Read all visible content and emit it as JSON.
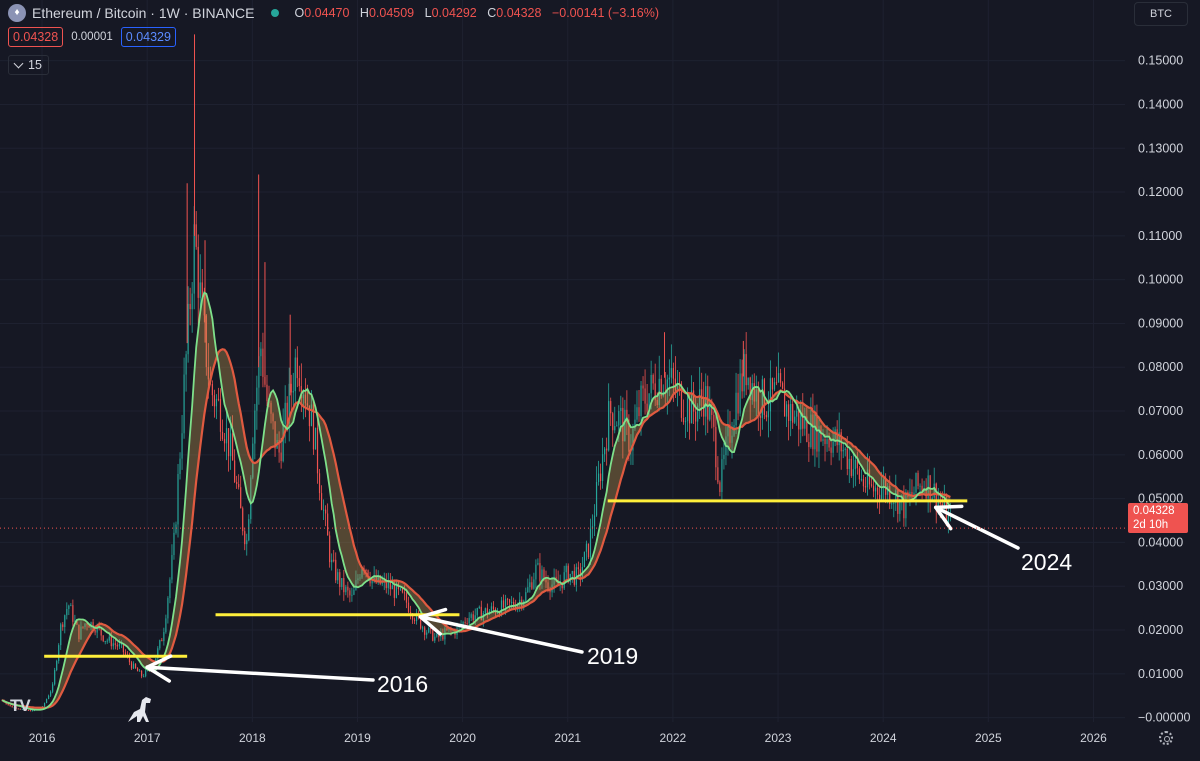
{
  "header": {
    "symbol": "Ethereum / Bitcoin · 1W · BINANCE",
    "open_label": "O",
    "open": "0.04470",
    "high_label": "H",
    "high": "0.04509",
    "low_label": "L",
    "low": "0.04292",
    "close_label": "C",
    "close": "0.04328",
    "change": "−0.00141 (−3.16%)"
  },
  "prices": {
    "sell": "0.04328",
    "spread": "0.00001",
    "buy": "0.04329"
  },
  "indicator": {
    "count": "15"
  },
  "currency": "BTC",
  "current_price": {
    "price": "0.04328",
    "countdown": "2d 10h"
  },
  "colors": {
    "background": "#161824",
    "up": "#26a69a",
    "down": "#ef5350",
    "fast_ma": "#7ee08a",
    "slow_ma": "#e05a40",
    "support": "#ffef3b",
    "annotation": "#ffffff"
  },
  "chart_data": {
    "type": "candlestick",
    "y_axis": {
      "position": "right",
      "ticks": [
        "0.15000",
        "0.14000",
        "0.13000",
        "0.12000",
        "0.11000",
        "0.10000",
        "0.09000",
        "0.08000",
        "0.07000",
        "0.06000",
        "0.05000",
        "0.04000",
        "0.03000",
        "0.02000",
        "0.01000",
        "−0.00000"
      ],
      "ylim": [
        -0.001,
        0.157
      ]
    },
    "x_axis": {
      "ticks": [
        "2016",
        "2017",
        "2018",
        "2019",
        "2020",
        "2021",
        "2022",
        "2023",
        "2024",
        "2025",
        "2026"
      ],
      "xlim": [
        2015.6,
        2026.3
      ]
    },
    "price_curve": [
      [
        2015.62,
        0.004
      ],
      [
        2015.7,
        0.0025
      ],
      [
        2015.9,
        0.0015
      ],
      [
        2016.0,
        0.0022
      ],
      [
        2016.1,
        0.007
      ],
      [
        2016.18,
        0.021
      ],
      [
        2016.25,
        0.026
      ],
      [
        2016.35,
        0.019
      ],
      [
        2016.42,
        0.022
      ],
      [
        2016.5,
        0.021
      ],
      [
        2016.6,
        0.018
      ],
      [
        2016.75,
        0.016
      ],
      [
        2016.85,
        0.012
      ],
      [
        2016.95,
        0.0095
      ],
      [
        2017.05,
        0.0115
      ],
      [
        2017.15,
        0.019
      ],
      [
        2017.25,
        0.038
      ],
      [
        2017.35,
        0.075
      ],
      [
        2017.45,
        0.11
      ],
      [
        2017.52,
        0.092
      ],
      [
        2017.6,
        0.075
      ],
      [
        2017.7,
        0.07
      ],
      [
        2017.8,
        0.06
      ],
      [
        2017.9,
        0.045
      ],
      [
        2017.95,
        0.04
      ],
      [
        2018.0,
        0.065
      ],
      [
        2018.08,
        0.085
      ],
      [
        2018.15,
        0.07
      ],
      [
        2018.25,
        0.06
      ],
      [
        2018.35,
        0.072
      ],
      [
        2018.42,
        0.083
      ],
      [
        2018.5,
        0.075
      ],
      [
        2018.58,
        0.066
      ],
      [
        2018.66,
        0.05
      ],
      [
        2018.75,
        0.035
      ],
      [
        2018.85,
        0.03
      ],
      [
        2018.95,
        0.027
      ],
      [
        2019.05,
        0.036
      ],
      [
        2019.15,
        0.031
      ],
      [
        2019.3,
        0.03
      ],
      [
        2019.45,
        0.027
      ],
      [
        2019.55,
        0.023
      ],
      [
        2019.65,
        0.02
      ],
      [
        2019.75,
        0.018
      ],
      [
        2019.85,
        0.0195
      ],
      [
        2019.95,
        0.02
      ],
      [
        2020.05,
        0.023
      ],
      [
        2020.2,
        0.024
      ],
      [
        2020.35,
        0.025
      ],
      [
        2020.5,
        0.026
      ],
      [
        2020.6,
        0.028
      ],
      [
        2020.7,
        0.034
      ],
      [
        2020.8,
        0.031
      ],
      [
        2020.9,
        0.03
      ],
      [
        2021.0,
        0.033
      ],
      [
        2021.1,
        0.032
      ],
      [
        2021.2,
        0.039
      ],
      [
        2021.3,
        0.055
      ],
      [
        2021.4,
        0.07
      ],
      [
        2021.5,
        0.068
      ],
      [
        2021.6,
        0.063
      ],
      [
        2021.7,
        0.072
      ],
      [
        2021.8,
        0.075
      ],
      [
        2021.9,
        0.078
      ],
      [
        2022.0,
        0.076
      ],
      [
        2022.1,
        0.072
      ],
      [
        2022.2,
        0.07
      ],
      [
        2022.3,
        0.074
      ],
      [
        2022.4,
        0.063
      ],
      [
        2022.45,
        0.053
      ],
      [
        2022.5,
        0.06
      ],
      [
        2022.6,
        0.073
      ],
      [
        2022.7,
        0.08
      ],
      [
        2022.8,
        0.073
      ],
      [
        2022.9,
        0.072
      ],
      [
        2023.0,
        0.074
      ],
      [
        2023.1,
        0.07
      ],
      [
        2023.2,
        0.068
      ],
      [
        2023.3,
        0.066
      ],
      [
        2023.4,
        0.065
      ],
      [
        2023.5,
        0.064
      ],
      [
        2023.6,
        0.062
      ],
      [
        2023.7,
        0.058
      ],
      [
        2023.8,
        0.054
      ],
      [
        2023.9,
        0.052
      ],
      [
        2024.0,
        0.053
      ],
      [
        2024.1,
        0.051
      ],
      [
        2024.2,
        0.048
      ],
      [
        2024.3,
        0.052
      ],
      [
        2024.4,
        0.054
      ],
      [
        2024.5,
        0.051
      ],
      [
        2024.58,
        0.047
      ],
      [
        2024.65,
        0.0433
      ]
    ],
    "wick_spikes": [
      [
        2017.45,
        0.156
      ],
      [
        2017.38,
        0.122
      ],
      [
        2017.55,
        0.109
      ],
      [
        2018.06,
        0.124
      ],
      [
        2018.12,
        0.104
      ],
      [
        2018.36,
        0.092
      ],
      [
        2021.92,
        0.088
      ],
      [
        2022.67,
        0.086
      ]
    ],
    "support_levels": [
      {
        "y": 0.014,
        "x_start": 2016.02,
        "x_end": 2017.38
      },
      {
        "y": 0.0235,
        "x_start": 2017.65,
        "x_end": 2019.97
      },
      {
        "y": 0.0495,
        "x_start": 2021.38,
        "x_end": 2024.8
      }
    ],
    "annotations": [
      {
        "text": "2016",
        "x": 2017.0,
        "y": 0.0115
      },
      {
        "text": "2019",
        "x": 2019.6,
        "y": 0.023
      },
      {
        "text": "2024",
        "x": 2024.5,
        "y": 0.048
      }
    ],
    "current_value": 0.04328
  }
}
